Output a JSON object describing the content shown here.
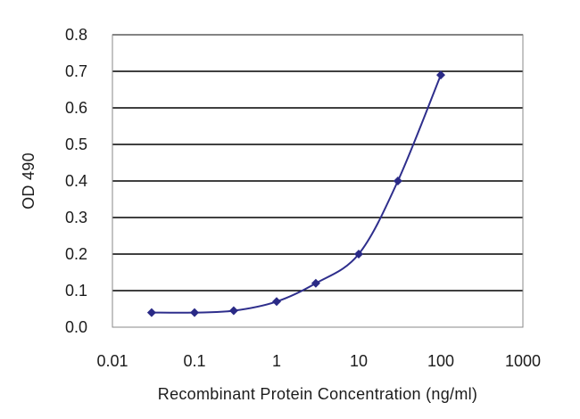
{
  "chart_data": {
    "type": "line",
    "title": "",
    "xlabel": "Recombinant Protein Concentration (ng/ml)",
    "ylabel": "OD 490",
    "xscale": "log",
    "xlim": [
      0.01,
      1000
    ],
    "ylim": [
      0.0,
      0.8
    ],
    "xticks": [
      "0.01",
      "0.1",
      "1",
      "10",
      "100",
      "1000"
    ],
    "yticks": [
      "0.0",
      "0.1",
      "0.2",
      "0.3",
      "0.4",
      "0.5",
      "0.6",
      "0.7",
      "0.8"
    ],
    "grid": "horizontal",
    "legend": "none",
    "series": [
      {
        "x": [
          0.03,
          0.1,
          0.3,
          1,
          3,
          10,
          30,
          100
        ],
        "y": [
          0.04,
          0.04,
          0.045,
          0.07,
          0.12,
          0.2,
          0.4,
          0.69
        ]
      }
    ],
    "colors": {
      "line": "#2e2e8c",
      "marker": "#2a2a86",
      "grid": "#000000",
      "text": "#1c1c1c"
    }
  }
}
